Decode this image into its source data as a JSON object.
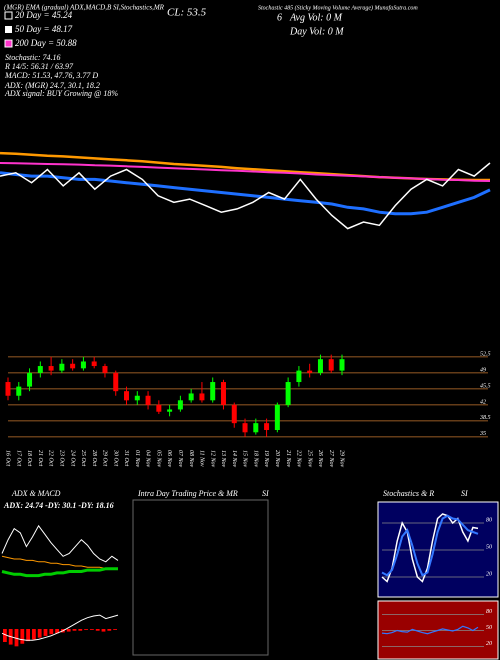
{
  "chart_data": [
    {
      "type": "line",
      "annotations": [
        "(MGR) EMA (gradual) ADX,MACD,B SI,Stochastics,MR",
        "CL: 53.5",
        "6",
        "Avg Vol: 0  M",
        "Day Vol: 0  M",
        "Stochastic 485 (Sticky Moving Volume Average) MunafaSutra.com",
        "20 Day = 45.24",
        "50 Day = 48.17",
        "200 Day = 50.88",
        "Stochastic: 74.16",
        "R 14/5: 56.31 / 63.97",
        "MACD: 51.53, 47.76, 3.77 D",
        "ADX:          (MGR) 24.7, 30.1, 18.2",
        "ADX signal:          BUY Growing @ 18%"
      ],
      "ylim": [
        30,
        62
      ],
      "series": [
        {
          "color": "#ff9900",
          "values": [
            58,
            57.8,
            57.5,
            57.2,
            57,
            56.7,
            56.4,
            56.1,
            55.8,
            55.5,
            55.1,
            54.7,
            54.4,
            54.1,
            53.8,
            53.4,
            53.1,
            52.8,
            52.5,
            52.2,
            51.9,
            51.6,
            51.3,
            51,
            50.7,
            50.5,
            50.3,
            50.1,
            50,
            49.9,
            49.8,
            49.8
          ]
        },
        {
          "color": "#ff33cc",
          "values": [
            55,
            54.9,
            54.8,
            54.7,
            54.6,
            54.5,
            54.3,
            54.2,
            54,
            53.8,
            53.6,
            53.4,
            53.2,
            53,
            52.8,
            52.6,
            52.4,
            52.2,
            52,
            51.8,
            51.5,
            51.3,
            51.1,
            50.9,
            50.7,
            50.5,
            50.3,
            50.1,
            49.9,
            49.8,
            49.6,
            49.5
          ]
        },
        {
          "color": "#1e6fff",
          "values": [
            52,
            51.5,
            51,
            51,
            50.5,
            50,
            50,
            49.5,
            49,
            48.5,
            48,
            47.5,
            47,
            46.5,
            46,
            45.5,
            45,
            44.5,
            44,
            43.5,
            43,
            42.5,
            41.5,
            41,
            40,
            39.5,
            39.5,
            40,
            41.5,
            43,
            44.5,
            46.8
          ]
        },
        {
          "color": "#ffffff",
          "values": [
            51,
            52,
            49,
            53,
            48,
            52,
            47,
            51,
            53,
            50,
            45,
            43,
            44,
            42,
            40,
            41,
            43,
            46,
            44,
            50,
            44,
            39,
            35,
            37,
            36,
            42,
            47,
            50,
            48,
            53,
            51,
            55
          ]
        }
      ]
    },
    {
      "type": "candlestick",
      "categories": [
        "16 Oct",
        "17 Oct",
        "18 Oct",
        "21 Oct",
        "22 Oct",
        "23 Oct",
        "24 Oct",
        "25 Oct",
        "28 Oct",
        "29 Oct",
        "30 Oct",
        "31 Oct",
        "01 Nov",
        "04 Nov",
        "05 Nov",
        "06 Nov",
        "07 Nov",
        "08 Nov",
        "11 Nov",
        "12 Nov",
        "13 Nov",
        "14 Nov",
        "15 Nov",
        "18 Nov",
        "19 Nov",
        "20 Nov",
        "21 Nov",
        "22 Nov",
        "25 Nov",
        "26 Nov",
        "27 Nov",
        "29 Nov"
      ],
      "open": [
        47,
        44,
        46,
        49,
        50.5,
        49.5,
        51,
        50,
        51.5,
        50.5,
        49,
        45,
        43,
        44,
        42,
        40.5,
        41,
        43,
        44.5,
        43,
        47,
        42,
        38,
        36,
        38,
        36.5,
        42,
        47,
        49.5,
        49,
        52,
        49.5
      ],
      "high": [
        48,
        47,
        50,
        51.5,
        52.5,
        52,
        52,
        52.5,
        52.5,
        51,
        49.5,
        46,
        45,
        45,
        43,
        42,
        44,
        45.5,
        47,
        48,
        47.5,
        42.5,
        39,
        39,
        39,
        42.5,
        48,
        50.5,
        51,
        53,
        53,
        53
      ],
      "low": [
        43,
        43,
        45,
        48,
        48.5,
        49,
        49.5,
        49.5,
        50,
        48,
        44,
        42,
        42,
        41,
        40,
        39.5,
        40.5,
        42.5,
        42.5,
        42.5,
        41,
        37,
        35,
        35.5,
        35,
        36,
        41.5,
        46,
        48,
        48.5,
        49,
        48.5
      ],
      "close": [
        44,
        46,
        49,
        50.5,
        49.5,
        51,
        50,
        51.5,
        50.5,
        49,
        45,
        43,
        44,
        42,
        40.5,
        41,
        43,
        44.5,
        43,
        47,
        42,
        38,
        36,
        38,
        36.5,
        42,
        47,
        49.5,
        49,
        52,
        49.5,
        52
      ],
      "up_color": "#00ff00",
      "down_color": "#ff0000",
      "grid_color": "#c8782f",
      "ylim": [
        33,
        56.2
      ],
      "yticks": [
        52.5,
        49,
        45.5,
        42,
        38.5,
        35
      ]
    },
    {
      "type": "line",
      "title": "ADX & MACD",
      "annotations": [
        "ADX: 24.74 -DY: 30.1 -DY: 18.16"
      ],
      "ylim": [
        0,
        60
      ],
      "series": [
        {
          "color": "#ffffff",
          "values": [
            30,
            40,
            48,
            45,
            35,
            42,
            50,
            44,
            38,
            33,
            28,
            30,
            35,
            40,
            36,
            30,
            26,
            24,
            28,
            25
          ]
        },
        {
          "color": "#ff9900",
          "values": [
            28,
            27,
            26,
            26,
            25,
            25,
            24,
            24,
            23,
            23,
            22,
            22,
            21,
            21,
            20,
            20,
            20,
            19,
            19,
            19
          ]
        },
        {
          "color": "#00cc00",
          "values": [
            17,
            16,
            15,
            15,
            14,
            14,
            14,
            15,
            15,
            16,
            16,
            17,
            17,
            17,
            18,
            18,
            18,
            19,
            19,
            19
          ]
        }
      ]
    },
    {
      "type": "bar",
      "color": "#ff0000",
      "ylim": [
        -3,
        3
      ],
      "values": [
        -1.5,
        -1.8,
        -2,
        -1.7,
        -1.4,
        -1.2,
        -1,
        -0.8,
        -0.6,
        -0.5,
        -0.4,
        -0.3,
        -0.2,
        -0.2,
        -0.1,
        -0.1,
        -0.2,
        -0.3,
        -0.2,
        -0.1
      ],
      "series": [
        {
          "color": "#ffffff",
          "values": [
            -0.5,
            -0.8,
            -1,
            -1.2,
            -1.3,
            -1.3,
            -1.2,
            -1,
            -0.8,
            -0.5,
            -0.2,
            0.2,
            0.6,
            1,
            1.3,
            1.5,
            1.6,
            1.2,
            1.4,
            1.6
          ]
        }
      ]
    },
    {
      "type": "line",
      "title": "Intra Day Trading Price & MR",
      "subtitle": "SI",
      "series": []
    },
    {
      "type": "line",
      "title": "Stochastics & R",
      "subtitle": "SI",
      "ylim": [
        0,
        100
      ],
      "yticks": [
        80,
        50,
        20
      ],
      "series": [
        {
          "color": "#ffffff",
          "values": [
            20,
            15,
            30,
            60,
            80,
            70,
            40,
            20,
            15,
            30,
            60,
            85,
            90,
            88,
            80,
            85,
            70,
            60,
            75,
            74
          ]
        },
        {
          "color": "#3377ff",
          "values": [
            25,
            22,
            28,
            45,
            65,
            72,
            55,
            35,
            22,
            25,
            45,
            70,
            85,
            88,
            85,
            84,
            78,
            72,
            70,
            68
          ]
        }
      ]
    },
    {
      "type": "line",
      "ylim": [
        0,
        100
      ],
      "yticks": [
        80,
        50,
        20
      ],
      "series": [
        {
          "color": "#3377ff",
          "values": [
            45,
            44,
            46,
            50,
            48,
            47,
            52,
            49,
            46,
            44,
            47,
            50,
            53,
            51,
            49,
            52,
            58,
            55,
            50,
            56
          ]
        }
      ]
    }
  ]
}
